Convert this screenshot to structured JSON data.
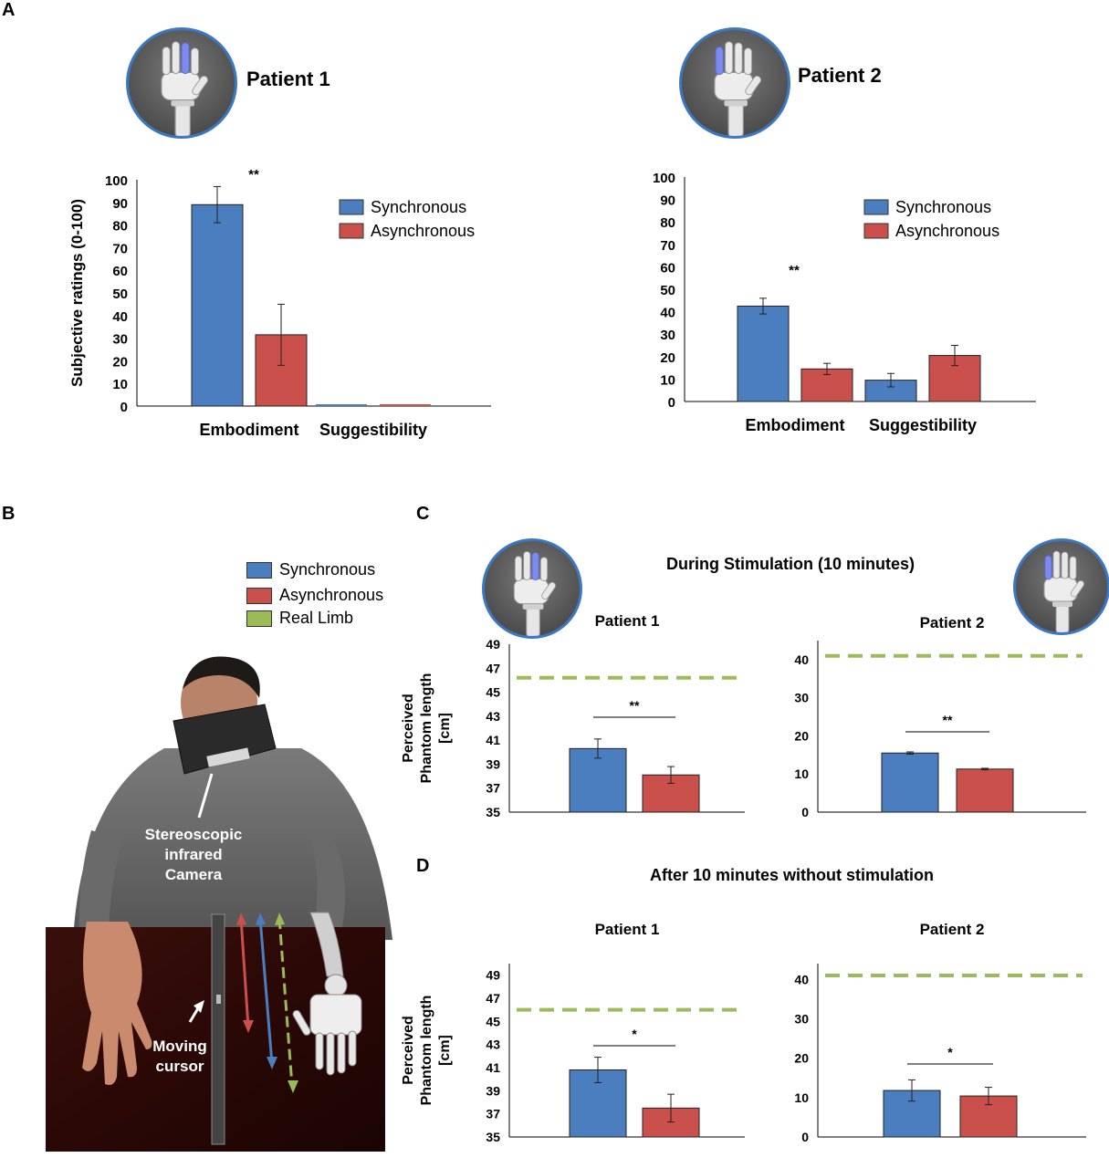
{
  "panels": {
    "a": "A",
    "b": "B",
    "c": "C",
    "d": "D"
  },
  "colors": {
    "synchronous": "#4a7ebf",
    "asynchronous": "#c9504b",
    "real_limb": "#9bbb59",
    "avatar_ring": "#3a78c4"
  },
  "icons": {
    "robot_hand": "robot-hand-avatar-icon"
  },
  "panelA": {
    "patient1_title": "Patient 1",
    "patient2_title": "Patient 2"
  },
  "panelB": {
    "legend": [
      "Synchronous",
      "Asynchronous",
      "Real Limb"
    ],
    "camera_label_1": "Stereoscopic",
    "camera_label_2": "infrared",
    "camera_label_3": "Camera",
    "cursor_label_1": "Moving",
    "cursor_label_2": "cursor"
  },
  "panelC": {
    "title": "During Stimulation (10 minutes)"
  },
  "panelD": {
    "title": "After 10 minutes without stimulation"
  },
  "chart_data": [
    {
      "id": "A1",
      "type": "bar",
      "categories": [
        "Embodiment",
        "Suggestibility"
      ],
      "series": [
        {
          "name": "Synchronous",
          "values": [
            89,
            0
          ],
          "errors": [
            8,
            0
          ]
        },
        {
          "name": "Asynchronous",
          "values": [
            31.5,
            0
          ],
          "errors": [
            13.5,
            0
          ]
        }
      ],
      "ylabel": "Subjective ratings (0-100)",
      "ylim": [
        0,
        100
      ],
      "yticks": [
        "0",
        "10",
        "20",
        "30",
        "40",
        "50",
        "60",
        "70",
        "80",
        "90",
        "100"
      ],
      "significance": [
        {
          "label": "**",
          "category": 0
        }
      ],
      "legend": "top-right"
    },
    {
      "id": "A2",
      "type": "bar",
      "categories": [
        "Embodiment",
        "Suggestibility"
      ],
      "series": [
        {
          "name": "Synchronous",
          "values": [
            42.5,
            9.5
          ],
          "errors": [
            3.5,
            3
          ]
        },
        {
          "name": "Asynchronous",
          "values": [
            14.5,
            20.5
          ],
          "errors": [
            2.5,
            4.5
          ]
        }
      ],
      "ylabel": "",
      "ylim": [
        0,
        100
      ],
      "yticks": [
        "0",
        "10",
        "20",
        "30",
        "40",
        "50",
        "60",
        "70",
        "80",
        "90",
        "100"
      ],
      "significance": [
        {
          "label": "**",
          "category": 0
        }
      ],
      "legend": "top-right"
    },
    {
      "id": "C1",
      "type": "bar",
      "title": "Patient 1",
      "series": [
        {
          "name": "Synchronous",
          "value": 40.3,
          "error": 0.8
        },
        {
          "name": "Asynchronous",
          "value": 38.1,
          "error": 0.7
        }
      ],
      "real_limb": 46.2,
      "ylabel": [
        "Perceived",
        "Phantom length",
        "[cm]"
      ],
      "ylim": [
        35,
        49
      ],
      "yticks": [
        "35",
        "37",
        "39",
        "41",
        "43",
        "45",
        "47",
        "49"
      ],
      "significance": "**"
    },
    {
      "id": "C2",
      "type": "bar",
      "title": "Patient 2",
      "series": [
        {
          "name": "Synchronous",
          "value": 15.5,
          "error": 0.3
        },
        {
          "name": "Asynchronous",
          "value": 11.3,
          "error": 0.2
        }
      ],
      "real_limb": 41,
      "ylim": [
        0,
        45
      ],
      "yticks": [
        "0",
        "10",
        "20",
        "30",
        "40"
      ],
      "significance": "**"
    },
    {
      "id": "D1",
      "type": "bar",
      "title": "Patient 1",
      "series": [
        {
          "name": "Synchronous",
          "value": 40.8,
          "error": 1.1
        },
        {
          "name": "Asynchronous",
          "value": 37.5,
          "error": 1.2
        }
      ],
      "real_limb": 46,
      "ylabel": [
        "Perceived",
        "Phantom length",
        "[cm]"
      ],
      "ylim": [
        35,
        50
      ],
      "yticks": [
        "35",
        "37",
        "39",
        "41",
        "43",
        "45",
        "47",
        "49"
      ],
      "significance": "*"
    },
    {
      "id": "D2",
      "type": "bar",
      "title": "Patient 2",
      "series": [
        {
          "name": "Synchronous",
          "value": 11.8,
          "error": 2.7
        },
        {
          "name": "Asynchronous",
          "value": 10.4,
          "error": 2.2
        }
      ],
      "real_limb": 41,
      "ylim": [
        0,
        44
      ],
      "yticks": [
        "0",
        "10",
        "20",
        "30",
        "40"
      ],
      "significance": "*"
    }
  ]
}
